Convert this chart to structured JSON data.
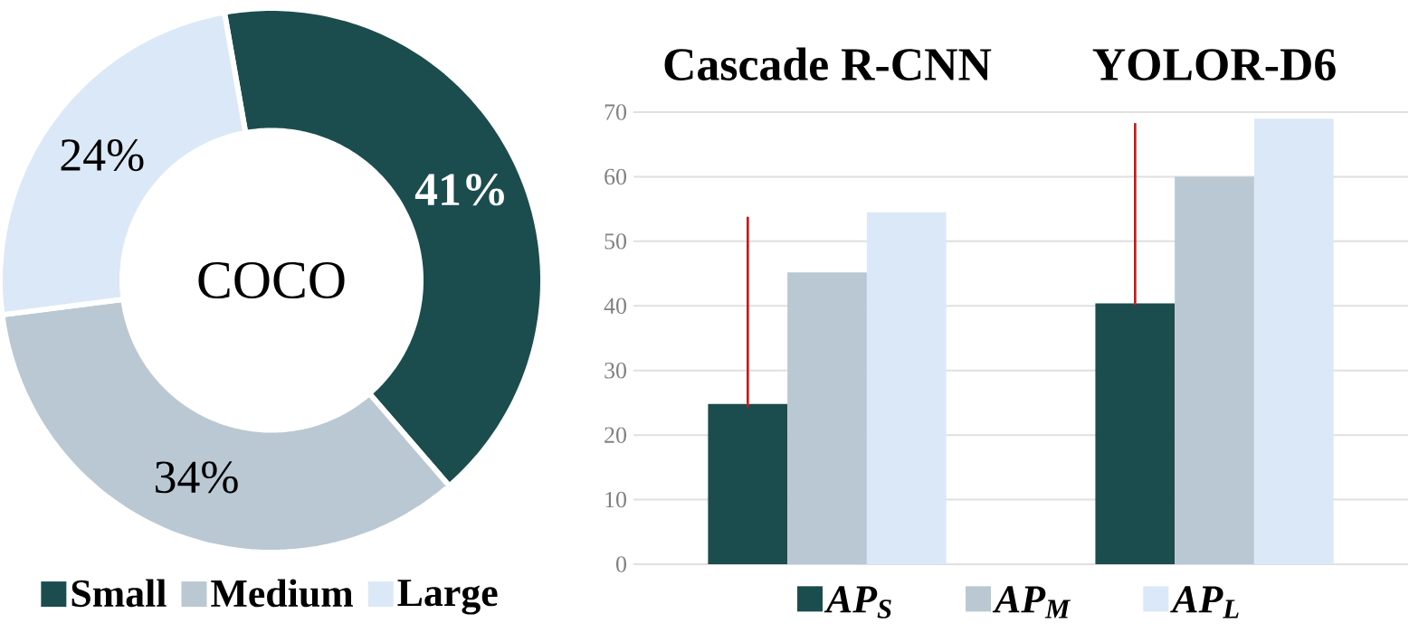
{
  "chart_data": [
    {
      "type": "donut",
      "title": "COCO",
      "categories": [
        "Small",
        "Medium",
        "Large"
      ],
      "values": [
        41,
        34,
        24
      ],
      "colors": [
        "#1b4d4f",
        "#b9c8d2",
        "#dae8f8"
      ],
      "value_labels": [
        "41%",
        "34%",
        "24%"
      ],
      "legend": "bottom"
    },
    {
      "type": "bar",
      "categories": [
        "Cascade R-CNN",
        "YOLOR-D6"
      ],
      "series": [
        {
          "name": "AP$_{S}$",
          "color": "#1b4d4f",
          "values": [
            24.8,
            40.4
          ],
          "errors": [
            [
              24.3,
              53.8
            ],
            [
              40.1,
              68.3
            ]
          ]
        },
        {
          "name": "AP$_{M}$",
          "color": "#b9c8d2",
          "values": [
            45.2,
            60
          ]
        },
        {
          "name": "AP$_{L}$",
          "color": "#dae8f8",
          "values": [
            54.5,
            69
          ]
        }
      ],
      "ylim": [
        0,
        70
      ],
      "yticks": [
        0,
        10,
        20,
        30,
        40,
        50,
        60,
        70
      ],
      "grid": "y",
      "legend": "bottom"
    }
  ]
}
